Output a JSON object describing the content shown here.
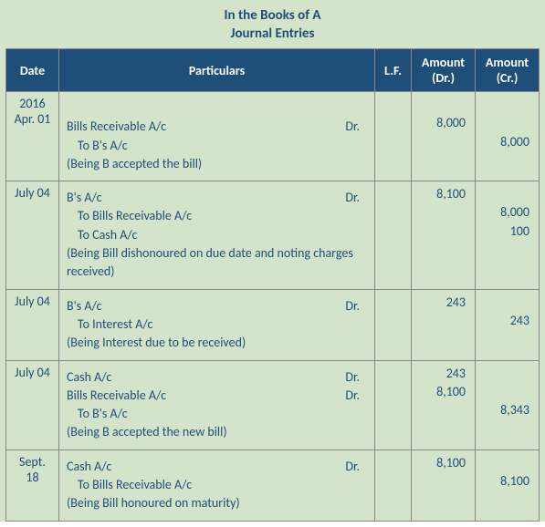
{
  "title_line1": "In the Books of A",
  "title_line2": "Journal Entries",
  "headers": {
    "date": "Date",
    "particulars": "Particulars",
    "lf": "L.F.",
    "amount_dr": "Amount (Dr.)",
    "amount_cr": "Amount (Cr.)"
  },
  "entries": [
    {
      "date_year": "2016",
      "date": "Apr. 01",
      "lines": [
        {
          "acct": "Bills Receivable A/c",
          "dr": "Dr.",
          "amt_dr": "8,000",
          "amt_cr": ""
        },
        {
          "acct": "To B's A/c",
          "dr": "",
          "amt_dr": "",
          "amt_cr": "8,000",
          "indent": true
        }
      ],
      "narration": "(Being B accepted the bill)"
    },
    {
      "date": "July 04",
      "lines": [
        {
          "acct": "B's A/c",
          "dr": "Dr.",
          "amt_dr": "8,100",
          "amt_cr": ""
        },
        {
          "acct": "To Bills Receivable A/c",
          "dr": "",
          "amt_dr": "",
          "amt_cr": "8,000",
          "indent": true
        },
        {
          "acct": "To Cash A/c",
          "dr": "",
          "amt_dr": "",
          "amt_cr": "100",
          "indent": true
        }
      ],
      "narration": "(Being Bill dishonoured on due date and noting charges received)"
    },
    {
      "date": "July 04",
      "lines": [
        {
          "acct": "B's A/c",
          "dr": "Dr.",
          "amt_dr": "243",
          "amt_cr": ""
        },
        {
          "acct": "To Interest A/c",
          "dr": "",
          "amt_dr": "",
          "amt_cr": "243",
          "indent": true
        }
      ],
      "narration": "(Being Interest due to be received)"
    },
    {
      "date": "July 04",
      "lines": [
        {
          "acct": "Cash A/c",
          "dr": "Dr.",
          "amt_dr": "243",
          "amt_cr": ""
        },
        {
          "acct": "Bills Receivable A/c",
          "dr": "Dr.",
          "amt_dr": "8,100",
          "amt_cr": ""
        },
        {
          "acct": "To B's A/c",
          "dr": "",
          "amt_dr": "",
          "amt_cr": "8,343",
          "indent": true
        }
      ],
      "narration": "(Being B accepted the new bill)"
    },
    {
      "date": "Sept. 18",
      "lines": [
        {
          "acct": "Cash A/c",
          "dr": "Dr.",
          "amt_dr": "8,100",
          "amt_cr": ""
        },
        {
          "acct": "To Bills Receivable A/c",
          "dr": "",
          "amt_dr": "",
          "amt_cr": "8,100",
          "indent": true
        }
      ],
      "narration": "(Being Bill honoured on maturity)"
    }
  ]
}
